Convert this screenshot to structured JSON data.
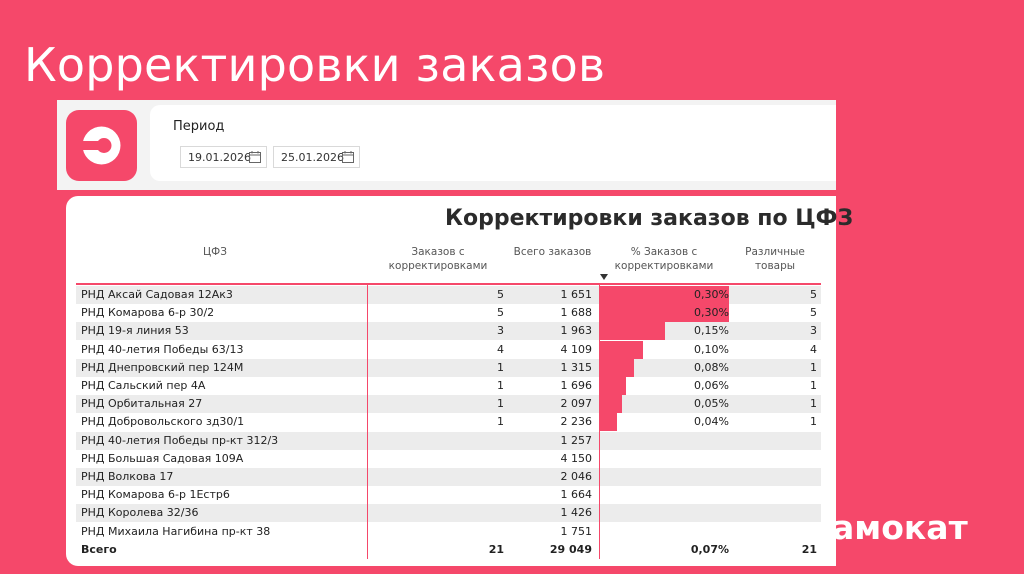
{
  "slide": {
    "title": "Корректировки заказов",
    "brand": "амокат"
  },
  "filter": {
    "label": "Период",
    "date_from": "19.01.2026",
    "date_to": "25.01.2026"
  },
  "report": {
    "title": "Корректировки заказов по ЦФЗ",
    "columns": {
      "cfz": "ЦФЗ",
      "with_corr_1": "Заказов с",
      "with_corr_2": "корректировками",
      "total_orders": "Всего заказов",
      "pct_1": "% Заказов с",
      "pct_2": "корректировками",
      "items_1": "Различные",
      "items_2": "товары"
    },
    "rows": [
      {
        "name": "РНД Аксай Садовая 12Ак3",
        "with_corr": "5",
        "total": "1 651",
        "pct": "0,30%",
        "pct_value": 0.3,
        "items": "5"
      },
      {
        "name": "РНД Комарова 6-р 30/2",
        "with_corr": "5",
        "total": "1 688",
        "pct": "0,30%",
        "pct_value": 0.3,
        "items": "5"
      },
      {
        "name": "РНД 19-я линия 53",
        "with_corr": "3",
        "total": "1 963",
        "pct": "0,15%",
        "pct_value": 0.15,
        "items": "3"
      },
      {
        "name": "РНД 40-летия Победы 63/13",
        "with_corr": "4",
        "total": "4 109",
        "pct": "0,10%",
        "pct_value": 0.1,
        "items": "4"
      },
      {
        "name": "РНД Днепровский пер 124М",
        "with_corr": "1",
        "total": "1 315",
        "pct": "0,08%",
        "pct_value": 0.08,
        "items": "1"
      },
      {
        "name": "РНД Сальский пер 4А",
        "with_corr": "1",
        "total": "1 696",
        "pct": "0,06%",
        "pct_value": 0.06,
        "items": "1"
      },
      {
        "name": "РНД Орбитальная 27",
        "with_corr": "1",
        "total": "2 097",
        "pct": "0,05%",
        "pct_value": 0.05,
        "items": "1"
      },
      {
        "name": "РНД Добровольского зд30/1",
        "with_corr": "1",
        "total": "2 236",
        "pct": "0,04%",
        "pct_value": 0.04,
        "items": "1"
      },
      {
        "name": "РНД 40-летия Победы пр-кт 312/3",
        "with_corr": "",
        "total": "1 257",
        "pct": "",
        "pct_value": 0,
        "items": ""
      },
      {
        "name": "РНД Большая Садовая 109А",
        "with_corr": "",
        "total": "4 150",
        "pct": "",
        "pct_value": 0,
        "items": ""
      },
      {
        "name": "РНД Волкова 17",
        "with_corr": "",
        "total": "2 046",
        "pct": "",
        "pct_value": 0,
        "items": ""
      },
      {
        "name": "РНД Комарова 6-р 1Естр6",
        "with_corr": "",
        "total": "1 664",
        "pct": "",
        "pct_value": 0,
        "items": ""
      },
      {
        "name": "РНД Королева 32/36",
        "with_corr": "",
        "total": "1 426",
        "pct": "",
        "pct_value": 0,
        "items": ""
      },
      {
        "name": "РНД Михаила Нагибина пр-кт 38",
        "with_corr": "",
        "total": "1 751",
        "pct": "",
        "pct_value": 0,
        "items": ""
      }
    ],
    "total": {
      "name": "Всего",
      "with_corr": "21",
      "total": "29 049",
      "pct": "0,07%",
      "items": "21"
    }
  },
  "colors": {
    "brand": "#F5486A"
  }
}
